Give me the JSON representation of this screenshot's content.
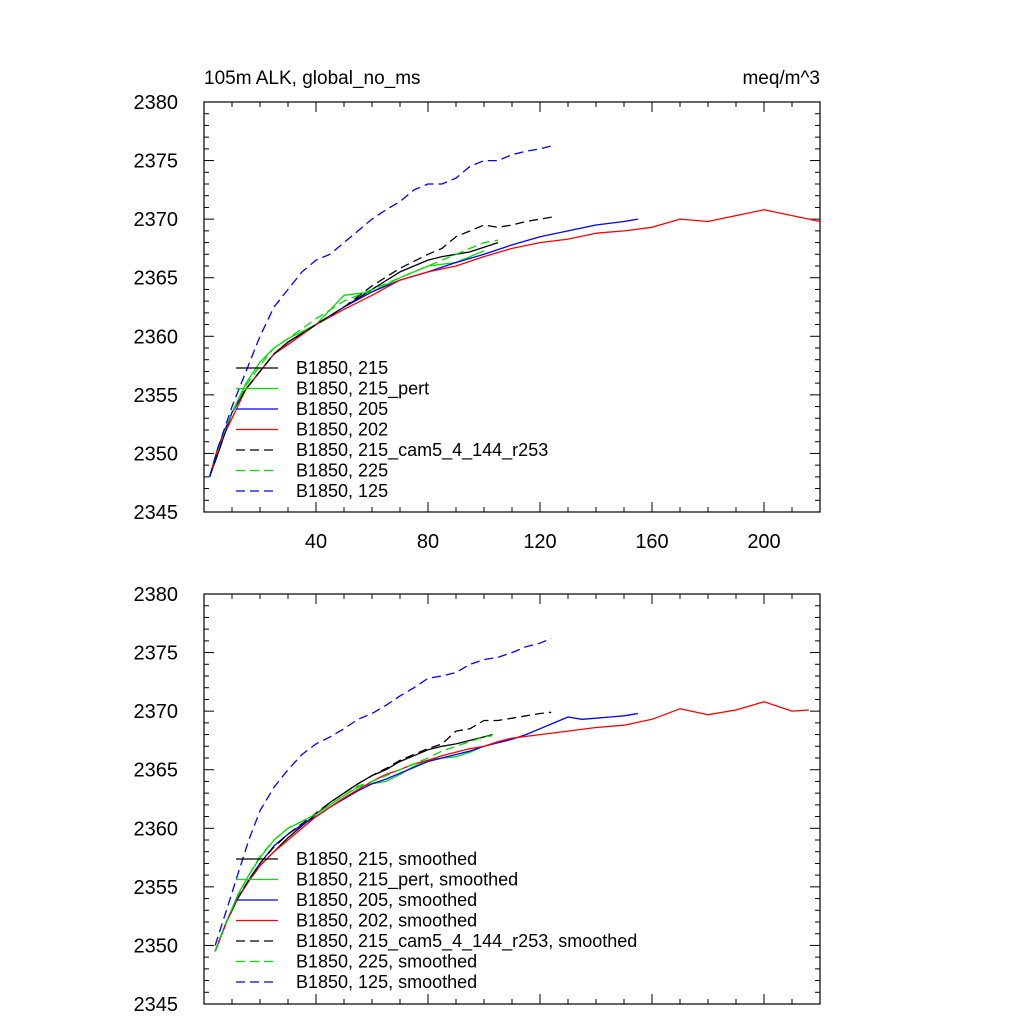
{
  "chart_data": [
    {
      "type": "line",
      "title": "105m ALK, global_no_ms",
      "units": "meq/m^3",
      "xlim": [
        0,
        220
      ],
      "ylim": [
        2345,
        2380
      ],
      "yticks": [
        2345,
        2350,
        2355,
        2360,
        2365,
        2370,
        2375,
        2380
      ],
      "yticks_labels": [
        "2345",
        "2350",
        "2355",
        "2360",
        "2365",
        "2370",
        "2375",
        "2380"
      ],
      "xticks": [
        40,
        80,
        120,
        160,
        200
      ],
      "xticks_labels": [
        "40",
        "80",
        "120",
        "160",
        "200"
      ],
      "legend_position": "lower-left",
      "series": [
        {
          "name": "B1850, 215",
          "color": "#000000",
          "dash": "solid",
          "x": [
            2,
            5,
            10,
            15,
            20,
            25,
            30,
            40,
            50,
            60,
            70,
            80,
            85,
            90,
            95,
            100,
            105
          ],
          "y": [
            2348,
            2350,
            2353.5,
            2355.5,
            2357,
            2358.5,
            2359.5,
            2361,
            2362.5,
            2364,
            2365.5,
            2366.5,
            2366.8,
            2367,
            2367.2,
            2367.6,
            2368
          ]
        },
        {
          "name": "B1850, 215_pert",
          "color": "#00dd00",
          "dash": "solid",
          "x": [
            2,
            5,
            10,
            15,
            20,
            25,
            30,
            40,
            50,
            60,
            70,
            80,
            90,
            100
          ],
          "y": [
            2348,
            2350.5,
            2353.5,
            2356,
            2357.8,
            2359,
            2359.8,
            2361,
            2363.5,
            2363.8,
            2365,
            2366,
            2366.3,
            2367.3
          ]
        },
        {
          "name": "B1850, 205",
          "color": "#0000ff",
          "dash": "solid",
          "x": [
            2,
            5,
            10,
            15,
            20,
            25,
            30,
            40,
            50,
            60,
            70,
            80,
            90,
            100,
            110,
            120,
            130,
            140,
            150,
            155
          ],
          "y": [
            2348,
            2350.5,
            2353.5,
            2355.5,
            2357,
            2358.5,
            2359.3,
            2361,
            2362.5,
            2363.8,
            2364.8,
            2365.5,
            2366.3,
            2367,
            2367.8,
            2368.5,
            2369,
            2369.5,
            2369.8,
            2370
          ]
        },
        {
          "name": "B1850, 202",
          "color": "#ff0000",
          "dash": "solid",
          "x": [
            2,
            5,
            10,
            15,
            20,
            25,
            30,
            40,
            50,
            60,
            70,
            80,
            90,
            100,
            110,
            120,
            130,
            140,
            150,
            160,
            170,
            180,
            190,
            200,
            210,
            220
          ],
          "y": [
            2348,
            2350.5,
            2353,
            2355.5,
            2357,
            2358.5,
            2359.3,
            2361,
            2362.3,
            2363.5,
            2364.8,
            2365.5,
            2366,
            2366.8,
            2367.5,
            2368,
            2368.3,
            2368.8,
            2369,
            2369.3,
            2370,
            2369.8,
            2370.3,
            2370.8,
            2370.3,
            2369.8
          ]
        },
        {
          "name": "B1850, 215_cam5_4_144_r253",
          "color": "#000000",
          "dash": "dashed",
          "x": [
            2,
            5,
            10,
            15,
            20,
            25,
            30,
            40,
            50,
            60,
            70,
            80,
            85,
            90,
            95,
            100,
            105,
            110,
            115,
            120,
            125
          ],
          "y": [
            2348,
            2350,
            2353.5,
            2355.5,
            2357,
            2358.5,
            2359.5,
            2361,
            2362.5,
            2364.3,
            2365.8,
            2367,
            2367.5,
            2368.5,
            2369,
            2369.5,
            2369.3,
            2369.5,
            2369.8,
            2370,
            2370.2
          ]
        },
        {
          "name": "B1850, 225",
          "color": "#00dd00",
          "dash": "dashed",
          "x": [
            2,
            5,
            10,
            15,
            20,
            25,
            30,
            40,
            50,
            60,
            70,
            80,
            90,
            95,
            100,
            105
          ],
          "y": [
            2348,
            2350.5,
            2353.5,
            2355.8,
            2357.5,
            2359,
            2359.8,
            2361.5,
            2363,
            2364,
            2365,
            2366,
            2367,
            2367.5,
            2368,
            2368.2
          ]
        },
        {
          "name": "B1850, 125",
          "color": "#0000ff",
          "dash": "dashed",
          "x": [
            2,
            5,
            10,
            15,
            20,
            25,
            30,
            35,
            40,
            45,
            50,
            55,
            60,
            65,
            70,
            75,
            80,
            85,
            90,
            95,
            100,
            105,
            110,
            115,
            120,
            125
          ],
          "y": [
            2348,
            2350.5,
            2354,
            2357,
            2360,
            2362.5,
            2364,
            2365.5,
            2366.5,
            2367,
            2368,
            2369,
            2370,
            2370.8,
            2371.5,
            2372.5,
            2373,
            2373,
            2373.5,
            2374.5,
            2375,
            2375,
            2375.5,
            2375.8,
            2376,
            2376.3
          ]
        }
      ]
    },
    {
      "type": "line",
      "xlim": [
        0,
        220
      ],
      "ylim": [
        2345,
        2380
      ],
      "yticks": [
        2345,
        2350,
        2355,
        2360,
        2365,
        2370,
        2375,
        2380
      ],
      "yticks_labels": [
        "2345",
        "2350",
        "2355",
        "2360",
        "2365",
        "2370",
        "2375",
        "2380"
      ],
      "xticks": [
        40,
        80,
        120,
        160,
        200
      ],
      "legend_position": "lower-left",
      "series": [
        {
          "name": "B1850, 215, smoothed",
          "color": "#000000",
          "dash": "solid",
          "x": [
            4,
            8,
            12,
            16,
            20,
            25,
            30,
            35,
            40,
            45,
            50,
            55,
            60,
            65,
            70,
            75,
            80,
            85,
            90,
            95,
            100,
            103
          ],
          "y": [
            2349.5,
            2352,
            2354,
            2355.5,
            2356.8,
            2358,
            2359.2,
            2360.2,
            2361.2,
            2362.2,
            2363,
            2363.8,
            2364.5,
            2365,
            2365.7,
            2366.2,
            2366.7,
            2367,
            2367.2,
            2367.5,
            2367.8,
            2368
          ]
        },
        {
          "name": "B1850, 215_pert, smoothed",
          "color": "#00dd00",
          "dash": "solid",
          "x": [
            4,
            8,
            12,
            16,
            20,
            25,
            30,
            35,
            40,
            45,
            50,
            55,
            60,
            65,
            70,
            75,
            80,
            85,
            90,
            95,
            100
          ],
          "y": [
            2349.5,
            2352,
            2354.3,
            2356,
            2357.5,
            2359,
            2360,
            2360.6,
            2361.2,
            2362,
            2362.8,
            2363.5,
            2363.8,
            2364,
            2364.6,
            2365.3,
            2365.8,
            2366,
            2366.1,
            2366.5,
            2367
          ]
        },
        {
          "name": "B1850, 205, smoothed",
          "color": "#0000ff",
          "dash": "solid",
          "x": [
            4,
            8,
            12,
            16,
            20,
            25,
            30,
            35,
            40,
            45,
            50,
            55,
            60,
            65,
            70,
            75,
            80,
            85,
            90,
            95,
            100,
            105,
            110,
            115,
            120,
            125,
            130,
            135,
            140,
            145,
            150,
            155
          ],
          "y": [
            2349.5,
            2352,
            2354,
            2355.6,
            2357,
            2358.5,
            2359.5,
            2360.3,
            2361,
            2361.8,
            2362.5,
            2363.2,
            2363.8,
            2364.2,
            2364.7,
            2365.2,
            2365.7,
            2366,
            2366.3,
            2366.6,
            2367,
            2367.3,
            2367.6,
            2368,
            2368.5,
            2369,
            2369.5,
            2369.3,
            2369.4,
            2369.5,
            2369.6,
            2369.8
          ]
        },
        {
          "name": "B1850, 202, smoothed",
          "color": "#ff0000",
          "dash": "solid",
          "x": [
            4,
            8,
            12,
            16,
            20,
            25,
            30,
            35,
            40,
            45,
            50,
            55,
            60,
            65,
            70,
            75,
            80,
            85,
            90,
            95,
            100,
            105,
            110,
            120,
            130,
            140,
            150,
            160,
            170,
            180,
            190,
            200,
            210,
            216
          ],
          "y": [
            2349.5,
            2352,
            2354,
            2355.5,
            2356.8,
            2358,
            2359,
            2360,
            2361,
            2361.8,
            2362.6,
            2363.3,
            2364,
            2364.6,
            2365,
            2365.5,
            2365.8,
            2366.2,
            2366.5,
            2366.8,
            2367,
            2367.4,
            2367.7,
            2368,
            2368.3,
            2368.6,
            2368.8,
            2369.3,
            2370.2,
            2369.7,
            2370.1,
            2370.8,
            2370,
            2370.1
          ]
        },
        {
          "name": "B1850, 215_cam5_4_144_r253, smoothed",
          "color": "#000000",
          "dash": "dashed",
          "x": [
            4,
            8,
            12,
            16,
            20,
            25,
            30,
            35,
            40,
            45,
            50,
            55,
            60,
            65,
            70,
            75,
            80,
            85,
            90,
            95,
            100,
            105,
            110,
            115,
            120,
            124
          ],
          "y": [
            2349.5,
            2352,
            2354,
            2355.6,
            2357,
            2358.4,
            2359.5,
            2360.4,
            2361.3,
            2362.2,
            2363,
            2363.8,
            2364.5,
            2365.1,
            2365.8,
            2366.3,
            2366.8,
            2367.2,
            2368.3,
            2368.5,
            2369.2,
            2369.2,
            2369.4,
            2369.6,
            2369.8,
            2369.9
          ]
        },
        {
          "name": "B1850, 225, smoothed",
          "color": "#00dd00",
          "dash": "dashed",
          "x": [
            4,
            8,
            12,
            16,
            20,
            25,
            30,
            35,
            40,
            45,
            50,
            55,
            60,
            65,
            70,
            75,
            80,
            85,
            90,
            95,
            100,
            103
          ],
          "y": [
            2349.5,
            2352,
            2354.2,
            2356,
            2357.6,
            2359,
            2360,
            2360.6,
            2361.2,
            2362,
            2362.8,
            2363.6,
            2364,
            2364.5,
            2365,
            2365.5,
            2366,
            2366.6,
            2367,
            2367.4,
            2367.8,
            2367.9
          ]
        },
        {
          "name": "B1850, 125, smoothed",
          "color": "#0000ff",
          "dash": "dashed",
          "x": [
            4,
            8,
            12,
            16,
            20,
            25,
            30,
            35,
            40,
            45,
            50,
            55,
            60,
            65,
            70,
            75,
            80,
            85,
            90,
            95,
            100,
            105,
            110,
            115,
            120,
            124
          ],
          "y": [
            2350,
            2353,
            2356,
            2359,
            2361.5,
            2363.5,
            2365,
            2366.3,
            2367.2,
            2367.8,
            2368.5,
            2369.3,
            2369.8,
            2370.5,
            2371.3,
            2372,
            2372.8,
            2373,
            2373.3,
            2374,
            2374.4,
            2374.6,
            2375,
            2375.5,
            2375.8,
            2376.2
          ]
        }
      ]
    }
  ]
}
